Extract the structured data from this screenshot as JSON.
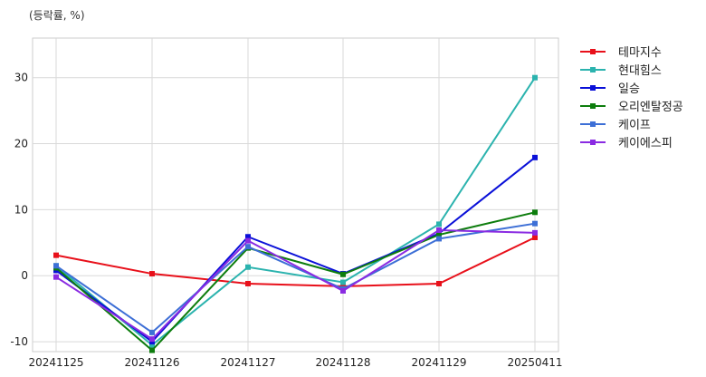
{
  "unit_label": "(등락률, %)",
  "chart_data": {
    "type": "line",
    "title": "",
    "xlabel": "",
    "ylabel": "(등락률, %)",
    "categories": [
      "20241125",
      "20241126",
      "20241127",
      "20241128",
      "20241129",
      "20250411"
    ],
    "ylim": [
      -11.5,
      36
    ],
    "yticks": [
      -10,
      0,
      10,
      20,
      30
    ],
    "grid": true,
    "legend_position": "right-top",
    "series": [
      {
        "name": "테마지수",
        "color": "#e8101a",
        "values": [
          3.1,
          0.3,
          -1.2,
          -1.6,
          -1.2,
          5.8
        ]
      },
      {
        "name": "현대힘스",
        "color": "#2bb3ae",
        "values": [
          1.5,
          -10.5,
          1.3,
          -1.0,
          7.8,
          30.0
        ]
      },
      {
        "name": "일승",
        "color": "#0a10d8",
        "values": [
          0.8,
          -10.0,
          5.9,
          0.3,
          6.4,
          17.9
        ]
      },
      {
        "name": "오리엔탈정공",
        "color": "#0d7d0d",
        "values": [
          1.2,
          -11.3,
          4.2,
          0.2,
          6.2,
          9.6
        ]
      },
      {
        "name": "케이프",
        "color": "#3d6fd6",
        "values": [
          1.5,
          -8.6,
          4.4,
          -2.0,
          5.6,
          7.9
        ]
      },
      {
        "name": "케이에스피",
        "color": "#8a2be2",
        "values": [
          -0.2,
          -9.6,
          5.3,
          -2.3,
          6.9,
          6.5
        ]
      }
    ]
  }
}
